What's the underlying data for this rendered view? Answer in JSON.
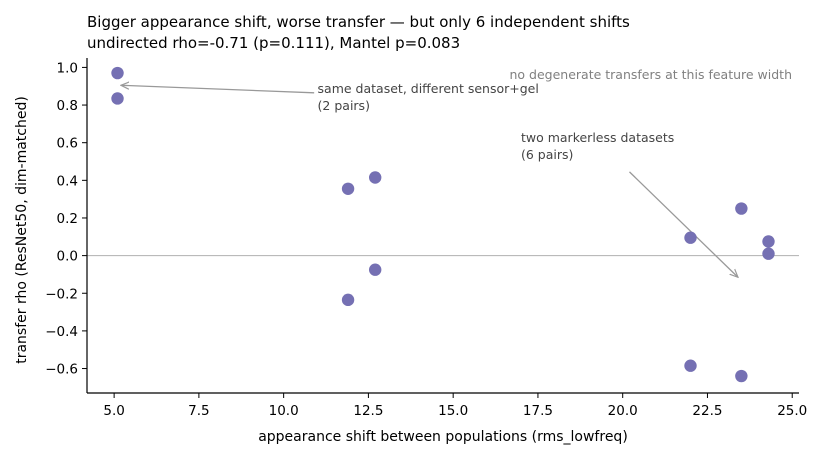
{
  "chart_data": {
    "type": "scatter",
    "title": "Bigger appearance shift, worse transfer — but only 6 independent shifts",
    "subtitle": "undirected rho=-0.71 (p=0.111), Mantel p=0.083",
    "xlabel": "appearance shift between populations (rms_lowfreq)",
    "ylabel": "transfer rho (ResNet50, dim-matched)",
    "xlim": [
      4.2,
      25.2
    ],
    "ylim": [
      -0.73,
      1.05
    ],
    "xticks": [
      5.0,
      7.5,
      10.0,
      12.5,
      15.0,
      17.5,
      20.0,
      22.5,
      25.0
    ],
    "xtick_labels": [
      "5.0",
      "7.5",
      "10.0",
      "12.5",
      "15.0",
      "17.5",
      "20.0",
      "22.5",
      "25.0"
    ],
    "yticks": [
      -0.6,
      -0.4,
      -0.2,
      0.0,
      0.2,
      0.4,
      0.6,
      0.8,
      1.0
    ],
    "ytick_labels": [
      "−0.6",
      "−0.4",
      "−0.2",
      "0.0",
      "0.2",
      "0.4",
      "0.6",
      "0.8",
      "1.0"
    ],
    "grid": false,
    "reference_line_y": 0.0,
    "point_color": "#7570b3",
    "points": [
      {
        "x": 5.1,
        "y": 0.97
      },
      {
        "x": 5.1,
        "y": 0.835
      },
      {
        "x": 11.9,
        "y": 0.355
      },
      {
        "x": 12.7,
        "y": 0.415
      },
      {
        "x": 12.7,
        "y": -0.075
      },
      {
        "x": 11.9,
        "y": -0.235
      },
      {
        "x": 22.0,
        "y": 0.095
      },
      {
        "x": 23.5,
        "y": 0.25
      },
      {
        "x": 24.3,
        "y": 0.075
      },
      {
        "x": 24.3,
        "y": 0.01
      },
      {
        "x": 22.0,
        "y": -0.585
      },
      {
        "x": 23.5,
        "y": -0.64
      }
    ],
    "annotations": [
      {
        "lines": [
          "same dataset, different sensor+gel",
          "(2 pairs)"
        ],
        "text_x": 11.0,
        "text_y": 0.865,
        "arrow_from": [
          10.9,
          0.865
        ],
        "arrow_to": [
          5.2,
          0.905
        ]
      },
      {
        "lines": [
          "two markerless datasets",
          "(6 pairs)"
        ],
        "text_x": 17.0,
        "text_y": 0.605,
        "arrow_from": [
          20.2,
          0.445
        ],
        "arrow_to": [
          23.4,
          -0.115
        ]
      }
    ],
    "note": "no degenerate transfers at this feature width"
  }
}
